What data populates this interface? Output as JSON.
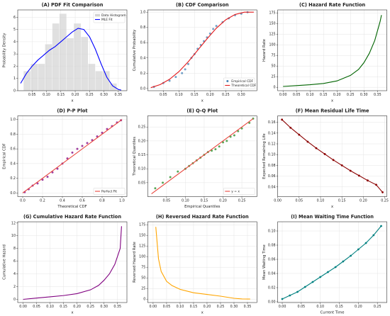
{
  "chart_data": [
    {
      "type": "histogram",
      "title": "(A) PDF Fit Comparison",
      "xlabel": "x",
      "ylabel": "Probability Density",
      "xlim": [
        0,
        0.38
      ],
      "ylim": [
        0,
        6.6
      ],
      "xticks": [
        0.05,
        {
          "value": 0.1,
          "label": "0.10"
        },
        0.15,
        {
          "value": 0.2,
          "label": "0.20"
        },
        0.25,
        {
          "value": 0.3,
          "label": "0.30"
        },
        0.35
      ],
      "yticks": [
        0,
        1,
        2,
        3,
        4,
        5,
        6
      ],
      "grid": true,
      "legend": "upper right",
      "series": [
        {
          "name": "Data Histogram",
          "type": "histogram",
          "color": "#d3d3d3",
          "bins": [
            0.02,
            0.045,
            0.07,
            0.095,
            0.12,
            0.145,
            0.17,
            0.195,
            0.22,
            0.245,
            0.27,
            0.295,
            0.32,
            0.345
          ],
          "values": [
            1.6,
            2.2,
            2.2,
            3.8,
            5.5,
            6.3,
            4.3,
            5.5,
            4.4,
            2.2,
            1.6,
            1.6,
            0.6
          ]
        },
        {
          "name": "MLE Fit",
          "type": "line",
          "color": "#0000ff",
          "x": [
            0.01,
            0.03,
            0.05,
            0.07,
            0.09,
            0.11,
            0.13,
            0.15,
            0.17,
            0.19,
            0.21,
            0.23,
            0.25,
            0.27,
            0.29,
            0.31,
            0.33,
            0.35,
            0.36
          ],
          "values": [
            0.6,
            1.4,
            2.0,
            2.5,
            2.9,
            3.3,
            3.6,
            4.0,
            4.4,
            4.8,
            5.1,
            5.0,
            4.4,
            3.4,
            2.2,
            1.1,
            0.4,
            0.1,
            0.05
          ]
        }
      ]
    },
    {
      "type": "scatter",
      "title": "(B) CDF Comparison",
      "xlabel": "x",
      "ylabel": "Cumulative Probability",
      "xlim": [
        0,
        0.35
      ],
      "ylim": [
        -0.03,
        1.03
      ],
      "xticks": [
        0.05,
        {
          "value": 0.1,
          "label": "0.10"
        },
        0.15,
        {
          "value": 0.2,
          "label": "0.20"
        },
        0.25,
        {
          "value": 0.3,
          "label": "0.30"
        }
      ],
      "yticks": [
        {
          "value": 0,
          "label": "0.0"
        },
        0.2,
        0.4,
        0.6,
        0.8,
        {
          "value": 1,
          "label": "1.0"
        }
      ],
      "grid": true,
      "legend": "lower right",
      "series": [
        {
          "name": "Empirical CDF",
          "type": "scatter",
          "color": "#4682b4",
          "x": [
            0.02,
            0.05,
            0.07,
            0.09,
            0.11,
            0.12,
            0.13,
            0.14,
            0.15,
            0.16,
            0.17,
            0.18,
            0.19,
            0.2,
            0.21,
            0.22,
            0.24,
            0.26,
            0.28,
            0.3,
            0.32
          ],
          "values": [
            0.02,
            0.07,
            0.1,
            0.15,
            0.2,
            0.25,
            0.32,
            0.4,
            0.45,
            0.52,
            0.57,
            0.62,
            0.67,
            0.72,
            0.78,
            0.82,
            0.87,
            0.92,
            0.96,
            0.98,
            1.0
          ]
        },
        {
          "name": "Theoretical CDF",
          "type": "line",
          "color": "#e41a1c",
          "x": [
            0.01,
            0.04,
            0.07,
            0.1,
            0.13,
            0.16,
            0.19,
            0.22,
            0.25,
            0.28,
            0.31,
            0.34
          ],
          "values": [
            0.01,
            0.05,
            0.12,
            0.22,
            0.35,
            0.5,
            0.65,
            0.79,
            0.9,
            0.97,
            1.0,
            1.0
          ]
        }
      ]
    },
    {
      "type": "line",
      "title": "(C) Hazard Rate Function",
      "xlabel": "x",
      "ylabel": "Hazard Rate",
      "xlim": [
        -0.02,
        0.385
      ],
      "ylim": [
        -8,
        182
      ],
      "xticks": [
        {
          "value": 0,
          "label": "0.00"
        },
        0.05,
        {
          "value": 0.1,
          "label": "0.10"
        },
        0.15,
        {
          "value": 0.2,
          "label": "0.20"
        },
        0.25,
        {
          "value": 0.3,
          "label": "0.30"
        },
        0.35
      ],
      "yticks": [
        0,
        25,
        50,
        75,
        100,
        125,
        150,
        175
      ],
      "grid": true,
      "series": [
        {
          "type": "line",
          "color": "#006400",
          "x": [
            0.0,
            0.05,
            0.1,
            0.15,
            0.2,
            0.25,
            0.28,
            0.3,
            0.32,
            0.34,
            0.36,
            0.365
          ],
          "values": [
            2,
            4,
            6,
            9,
            15,
            28,
            42,
            58,
            80,
            110,
            155,
            170
          ]
        }
      ]
    },
    {
      "type": "scatter",
      "title": "(D) P-P Plot",
      "xlabel": "Theoretical CDF",
      "ylabel": "Empirical CDF",
      "xlim": [
        -0.05,
        1.05
      ],
      "ylim": [
        -0.05,
        1.05
      ],
      "xticks": [
        {
          "value": 0,
          "label": "0.0"
        },
        0.2,
        0.4,
        0.6,
        0.8,
        {
          "value": 1,
          "label": "1.0"
        }
      ],
      "yticks": [
        {
          "value": 0,
          "label": "0.0"
        },
        0.2,
        0.4,
        0.6,
        0.8,
        {
          "value": 1,
          "label": "1.0"
        }
      ],
      "grid": true,
      "legend": "lower right",
      "series": [
        {
          "type": "scatter",
          "color": "#800080",
          "x": [
            0.02,
            0.06,
            0.1,
            0.15,
            0.2,
            0.25,
            0.3,
            0.35,
            0.4,
            0.45,
            0.5,
            0.55,
            0.6,
            0.65,
            0.7,
            0.75,
            0.8,
            0.85,
            0.9,
            0.95,
            0.99
          ],
          "values": [
            0.01,
            0.05,
            0.1,
            0.13,
            0.18,
            0.22,
            0.28,
            0.33,
            0.4,
            0.47,
            0.55,
            0.6,
            0.64,
            0.68,
            0.72,
            0.77,
            0.82,
            0.87,
            0.91,
            0.96,
            0.99
          ]
        },
        {
          "name": "Perfect Fit",
          "type": "line",
          "color": "#e8453c",
          "x": [
            0,
            1
          ],
          "values": [
            0,
            1
          ]
        }
      ]
    },
    {
      "type": "scatter",
      "title": "(E) Q-Q Plot",
      "xlabel": "Empirical Quantiles",
      "ylabel": "Theoretical Quantiles",
      "xlim": [
        0,
        0.29
      ],
      "ylim": [
        0,
        0.29
      ],
      "xticks": [
        0.05,
        {
          "value": 0.1,
          "label": "0.10"
        },
        0.15,
        {
          "value": 0.2,
          "label": "0.20"
        },
        0.25
      ],
      "yticks": [
        0.05,
        {
          "value": 0.1,
          "label": "0.10"
        },
        0.15,
        {
          "value": 0.2,
          "label": "0.20"
        },
        0.25
      ],
      "grid": true,
      "legend": "lower right",
      "series": [
        {
          "type": "scatter",
          "color": "#228b22",
          "x": [
            0.02,
            0.04,
            0.06,
            0.08,
            0.1,
            0.11,
            0.12,
            0.13,
            0.14,
            0.15,
            0.16,
            0.17,
            0.18,
            0.19,
            0.2,
            0.21,
            0.22,
            0.23,
            0.24,
            0.25,
            0.27,
            0.28
          ],
          "values": [
            0.03,
            0.05,
            0.07,
            0.09,
            0.1,
            0.11,
            0.12,
            0.13,
            0.14,
            0.15,
            0.16,
            0.165,
            0.17,
            0.18,
            0.195,
            0.2,
            0.215,
            0.22,
            0.235,
            0.245,
            0.265,
            0.28
          ]
        },
        {
          "name": "y = x",
          "type": "line",
          "color": "#e8453c",
          "x": [
            0.01,
            0.28
          ],
          "values": [
            0.01,
            0.28
          ]
        }
      ]
    },
    {
      "type": "line",
      "title": "(F) Mean Residual Life Time",
      "xlabel": "x",
      "ylabel": "Expected Remaining Life",
      "xlim": [
        0,
        0.255
      ],
      "ylim": [
        0.022,
        0.172
      ],
      "xticks": [
        {
          "value": 0,
          "label": "0.00"
        },
        0.05,
        {
          "value": 0.1,
          "label": "0.10"
        },
        0.15,
        {
          "value": 0.2,
          "label": "0.20"
        },
        0.25
      ],
      "yticks": [
        0.04,
        0.06,
        0.08,
        {
          "value": 0.1,
          "label": "0.10"
        },
        0.12,
        0.14,
        0.16
      ],
      "grid": true,
      "series": [
        {
          "type": "line",
          "color": "#8b0000",
          "markers": true,
          "x": [
            0.01,
            0.03,
            0.05,
            0.07,
            0.09,
            0.11,
            0.13,
            0.15,
            0.17,
            0.19,
            0.21,
            0.23,
            0.245
          ],
          "values": [
            0.165,
            0.15,
            0.137,
            0.124,
            0.112,
            0.101,
            0.09,
            0.08,
            0.07,
            0.061,
            0.052,
            0.044,
            0.03
          ]
        }
      ]
    },
    {
      "type": "line",
      "title": "(G) Cumulative Hazard Rate Function",
      "xlabel": "x",
      "ylabel": "Cumulative Hazard",
      "xlim": [
        -0.02,
        0.385
      ],
      "ylim": [
        -0.5,
        12.2
      ],
      "xticks": [
        {
          "value": 0,
          "label": "0.00"
        },
        0.05,
        {
          "value": 0.1,
          "label": "0.10"
        },
        0.15,
        {
          "value": 0.2,
          "label": "0.20"
        },
        0.25,
        {
          "value": 0.3,
          "label": "0.30"
        },
        0.35
      ],
      "yticks": [
        0,
        2,
        4,
        6,
        8,
        10,
        12
      ],
      "grid": true,
      "series": [
        {
          "type": "line",
          "color": "#800080",
          "x": [
            0.0,
            0.05,
            0.1,
            0.15,
            0.2,
            0.25,
            0.28,
            0.3,
            0.32,
            0.34,
            0.36,
            0.365
          ],
          "values": [
            0,
            0.2,
            0.4,
            0.6,
            0.9,
            1.5,
            2.2,
            3,
            4,
            5.5,
            8,
            11.5
          ]
        }
      ]
    },
    {
      "type": "line",
      "title": "(H) Reversed Hazard Rate Function",
      "xlabel": "x",
      "ylabel": "Reversed Hazard Rate",
      "xlim": [
        -0.02,
        0.385
      ],
      "ylim": [
        -8,
        182
      ],
      "xticks": [
        {
          "value": 0,
          "label": "0.00"
        },
        0.05,
        {
          "value": 0.1,
          "label": "0.10"
        },
        0.15,
        {
          "value": 0.2,
          "label": "0.20"
        },
        0.25,
        {
          "value": 0.3,
          "label": "0.30"
        },
        0.35
      ],
      "yticks": [
        0,
        25,
        50,
        75,
        100,
        125,
        150,
        175
      ],
      "grid": true,
      "series": [
        {
          "type": "line",
          "color": "#ffa500",
          "x": [
            0.01,
            0.02,
            0.03,
            0.05,
            0.07,
            0.1,
            0.15,
            0.2,
            0.25,
            0.3,
            0.33,
            0.36
          ],
          "values": [
            170,
            95,
            65,
            42,
            32,
            23,
            15,
            11,
            7,
            2,
            0.5,
            0.2
          ]
        }
      ]
    },
    {
      "type": "line",
      "title": "(I) Mean Waiting Time Function",
      "xlabel": "Current Time",
      "ylabel": "Mean Waiting Time",
      "xlim": [
        -0.012,
        0.275
      ],
      "ylim": [
        -0.001,
        0.113
      ],
      "xticks": [
        {
          "value": 0,
          "label": "0.00"
        },
        0.05,
        {
          "value": 0.1,
          "label": "0.10"
        },
        0.15,
        {
          "value": 0.2,
          "label": "0.20"
        },
        0.25
      ],
      "yticks": [
        {
          "value": 0,
          "label": "0.00"
        },
        0.02,
        0.04,
        0.06,
        0.08,
        {
          "value": 0.1,
          "label": "0.10"
        }
      ],
      "grid": true,
      "series": [
        {
          "type": "line",
          "color": "#008080",
          "markers": true,
          "x": [
            0.0,
            0.02,
            0.04,
            0.06,
            0.08,
            0.1,
            0.12,
            0.14,
            0.16,
            0.18,
            0.2,
            0.22,
            0.24,
            0.26
          ],
          "values": [
            0.004,
            0.009,
            0.014,
            0.021,
            0.028,
            0.035,
            0.042,
            0.049,
            0.057,
            0.065,
            0.074,
            0.083,
            0.094,
            0.107
          ]
        }
      ]
    }
  ]
}
